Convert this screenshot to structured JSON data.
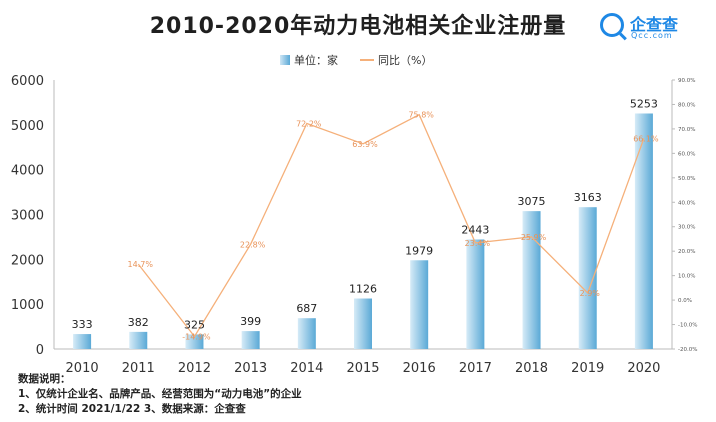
{
  "header": {
    "title": "2010-2020年动力电池相关企业注册量",
    "logo_name": "企查查",
    "logo_domain": "Qcc.com"
  },
  "chart_data": {
    "type": "bar",
    "title": "2010-2020年动力电池相关企业注册量",
    "categories": [
      "2010",
      "2011",
      "2012",
      "2013",
      "2014",
      "2015",
      "2016",
      "2017",
      "2018",
      "2019",
      "2020"
    ],
    "series": [
      {
        "name": "单位：家",
        "type": "bar",
        "values": [
          333,
          382,
          325,
          399,
          687,
          1126,
          1979,
          2443,
          3075,
          3163,
          5253
        ],
        "labels": [
          "333",
          "382",
          "325",
          "399",
          "687",
          "1126",
          "1979",
          "2443",
          "3075",
          "3163",
          "5253"
        ],
        "color": "#5aa9d6"
      },
      {
        "name": "同比（%）",
        "type": "line",
        "axis": "right",
        "values": [
          null,
          14.7,
          -14.9,
          22.8,
          72.2,
          63.9,
          75.8,
          23.4,
          25.9,
          2.9,
          66.1
        ],
        "labels": [
          "",
          "14.7%",
          "-14.9%",
          "22.8%",
          "72.2%",
          "63.9%",
          "75.8%",
          "23.4%",
          "25.9%",
          "2.9%",
          "66.1%"
        ],
        "color": "#f5b07a"
      }
    ],
    "y_left": {
      "min": 0,
      "max": 6000,
      "ticks": [
        "0",
        "1000",
        "2000",
        "3000",
        "4000",
        "5000",
        "6000"
      ]
    },
    "y_right": {
      "min": -20,
      "max": 90,
      "ticks": [
        "-20.0%",
        "-10.0%",
        "0.0%",
        "10.0%",
        "20.0%",
        "30.0%",
        "40.0%",
        "50.0%",
        "60.0%",
        "70.0%",
        "80.0%",
        "90.0%"
      ]
    },
    "grid": false,
    "legend": "top"
  },
  "notes": {
    "heading": "数据说明：",
    "line1": "1、仅统计企业名、品牌产品、经营范围为“动力电池”的企业",
    "line2": "2、统计时间 2021/1/22      3、数据来源：企查查"
  },
  "colors": {
    "bar_light": "#d6ebf7",
    "bar_dark": "#5aa9d6",
    "line": "#f5b07a",
    "axis": "#999999"
  }
}
